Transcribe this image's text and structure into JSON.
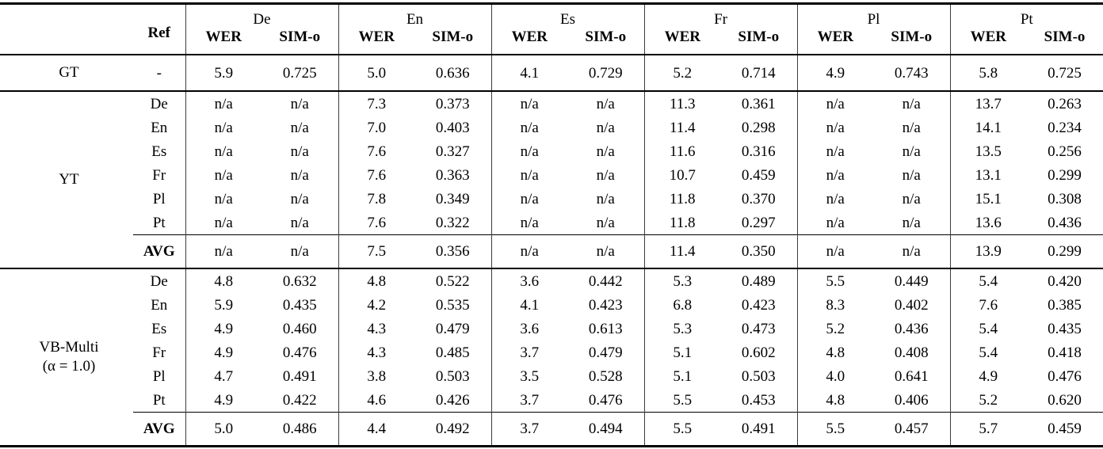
{
  "table": {
    "header": {
      "model_col_label": "",
      "ref_label": "Ref",
      "groups": [
        "De",
        "En",
        "Es",
        "Fr",
        "Pl",
        "Pt"
      ],
      "metrics": [
        "WER",
        "SIM-o"
      ]
    },
    "sections": [
      {
        "id": "gt",
        "model_lines": [
          "GT"
        ],
        "rows": [
          {
            "ref": "-",
            "values": [
              "5.9",
              "0.725",
              "5.0",
              "0.636",
              "4.1",
              "0.729",
              "5.2",
              "0.714",
              "4.9",
              "0.743",
              "5.8",
              "0.725"
            ]
          }
        ],
        "avg": null
      },
      {
        "id": "yt",
        "model_lines": [
          "YT"
        ],
        "rows": [
          {
            "ref": "De",
            "values": [
              "n/a",
              "n/a",
              "7.3",
              "0.373",
              "n/a",
              "n/a",
              "11.3",
              "0.361",
              "n/a",
              "n/a",
              "13.7",
              "0.263"
            ]
          },
          {
            "ref": "En",
            "values": [
              "n/a",
              "n/a",
              "7.0",
              "0.403",
              "n/a",
              "n/a",
              "11.4",
              "0.298",
              "n/a",
              "n/a",
              "14.1",
              "0.234"
            ]
          },
          {
            "ref": "Es",
            "values": [
              "n/a",
              "n/a",
              "7.6",
              "0.327",
              "n/a",
              "n/a",
              "11.6",
              "0.316",
              "n/a",
              "n/a",
              "13.5",
              "0.256"
            ]
          },
          {
            "ref": "Fr",
            "values": [
              "n/a",
              "n/a",
              "7.6",
              "0.363",
              "n/a",
              "n/a",
              "10.7",
              "0.459",
              "n/a",
              "n/a",
              "13.1",
              "0.299"
            ]
          },
          {
            "ref": "Pl",
            "values": [
              "n/a",
              "n/a",
              "7.8",
              "0.349",
              "n/a",
              "n/a",
              "11.8",
              "0.370",
              "n/a",
              "n/a",
              "15.1",
              "0.308"
            ]
          },
          {
            "ref": "Pt",
            "values": [
              "n/a",
              "n/a",
              "7.6",
              "0.322",
              "n/a",
              "n/a",
              "11.8",
              "0.297",
              "n/a",
              "n/a",
              "13.6",
              "0.436"
            ]
          }
        ],
        "avg": {
          "ref": "AVG",
          "values": [
            "n/a",
            "n/a",
            "7.5",
            "0.356",
            "n/a",
            "n/a",
            "11.4",
            "0.350",
            "n/a",
            "n/a",
            "13.9",
            "0.299"
          ]
        }
      },
      {
        "id": "vb-multi",
        "model_lines": [
          "VB-Multi",
          "(α = 1.0)"
        ],
        "rows": [
          {
            "ref": "De",
            "values": [
              "4.8",
              "0.632",
              "4.8",
              "0.522",
              "3.6",
              "0.442",
              "5.3",
              "0.489",
              "5.5",
              "0.449",
              "5.4",
              "0.420"
            ]
          },
          {
            "ref": "En",
            "values": [
              "5.9",
              "0.435",
              "4.2",
              "0.535",
              "4.1",
              "0.423",
              "6.8",
              "0.423",
              "8.3",
              "0.402",
              "7.6",
              "0.385"
            ]
          },
          {
            "ref": "Es",
            "values": [
              "4.9",
              "0.460",
              "4.3",
              "0.479",
              "3.6",
              "0.613",
              "5.3",
              "0.473",
              "5.2",
              "0.436",
              "5.4",
              "0.435"
            ]
          },
          {
            "ref": "Fr",
            "values": [
              "4.9",
              "0.476",
              "4.3",
              "0.485",
              "3.7",
              "0.479",
              "5.1",
              "0.602",
              "4.8",
              "0.408",
              "5.4",
              "0.418"
            ]
          },
          {
            "ref": "Pl",
            "values": [
              "4.7",
              "0.491",
              "3.8",
              "0.503",
              "3.5",
              "0.528",
              "5.1",
              "0.503",
              "4.0",
              "0.641",
              "4.9",
              "0.476"
            ]
          },
          {
            "ref": "Pt",
            "values": [
              "4.9",
              "0.422",
              "4.6",
              "0.426",
              "3.7",
              "0.476",
              "5.5",
              "0.453",
              "4.8",
              "0.406",
              "5.2",
              "0.620"
            ]
          }
        ],
        "avg": {
          "ref": "AVG",
          "values": [
            "5.0",
            "0.486",
            "4.4",
            "0.492",
            "3.7",
            "0.494",
            "5.5",
            "0.491",
            "5.5",
            "0.457",
            "5.7",
            "0.459"
          ]
        }
      }
    ]
  }
}
